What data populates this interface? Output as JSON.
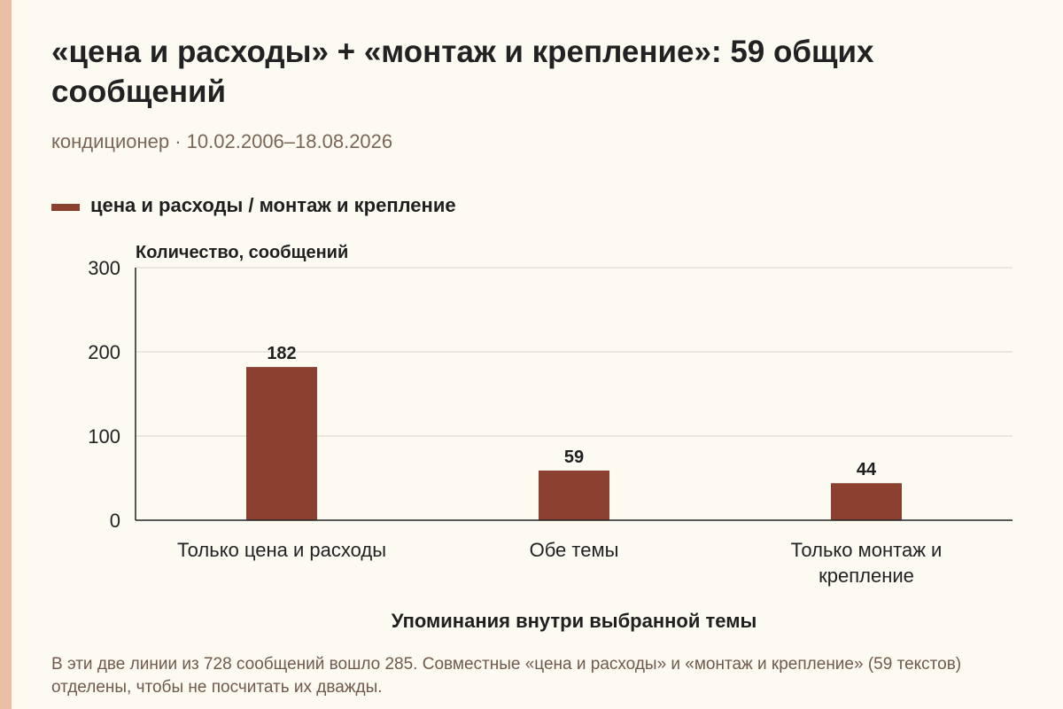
{
  "header": {
    "title": "«цена и расходы» + «монтаж и крепление»: 59 общих сообщений",
    "subtitle": "кондиционер · 10.02.2006–18.08.2026"
  },
  "legend": {
    "label": "цена и расходы / монтаж и крепление",
    "color": "#8b4030"
  },
  "chart_data": {
    "type": "bar",
    "categories": [
      "Только цена и расходы",
      "Обе темы",
      "Только монтаж и крепление"
    ],
    "category_lines": [
      [
        "Только цена и расходы"
      ],
      [
        "Обе темы"
      ],
      [
        "Только монтаж и",
        "крепление"
      ]
    ],
    "series": [
      {
        "name": "цена и расходы / монтаж и крепление",
        "values": [
          182,
          59,
          44
        ]
      }
    ],
    "data_labels": [
      "182",
      "59",
      "44"
    ],
    "ylabel": "Количество, сообщений",
    "xlabel": "Упоминания внутри выбранной темы",
    "ylim": [
      0,
      300
    ],
    "yticks": [
      0,
      100,
      200,
      300
    ],
    "grid": true,
    "bar_color": "#8b4030"
  },
  "footnote": "В эти две линии из 728 сообщений вошло 285. Совместные «цена и расходы» и «монтаж и крепление» (59 текстов) отделены, чтобы не посчитать их дважды."
}
